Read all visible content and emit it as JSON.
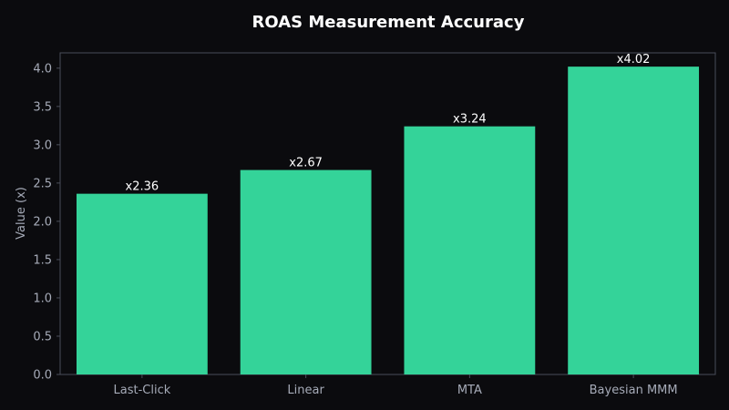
{
  "chart_data": {
    "type": "bar",
    "title": "ROAS Measurement Accuracy",
    "xlabel": "",
    "ylabel": "Value (x)",
    "categories": [
      "Last-Click",
      "Linear",
      "MTA",
      "Bayesian MMM"
    ],
    "values": [
      2.36,
      2.67,
      3.24,
      4.02
    ],
    "data_labels": [
      "x2.36",
      "x2.67",
      "x3.24",
      "x4.02"
    ],
    "ylim": [
      0,
      4.2
    ],
    "yticks": [
      0.0,
      0.5,
      1.0,
      1.5,
      2.0,
      2.5,
      3.0,
      3.5,
      4.0
    ],
    "ytick_labels": [
      "0.0",
      "0.5",
      "1.0",
      "1.5",
      "2.0",
      "2.5",
      "3.0",
      "3.5",
      "4.0"
    ],
    "grid": false,
    "legend": "none"
  },
  "colors": {
    "background": "#0b0b0e",
    "bar": "#34d399",
    "axes_border": "#4a4e5a",
    "tick_text": "#a6abb8",
    "title_text": "#ffffff",
    "data_label_text": "#ffffff"
  }
}
